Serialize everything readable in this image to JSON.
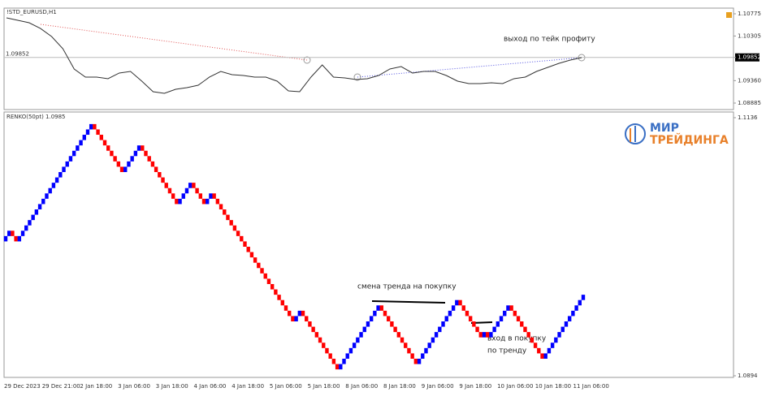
{
  "chart_data": [
    {
      "type": "line",
      "title": "!STD_EURUSD,H1",
      "color": "#333333",
      "values": [
        1.10689,
        1.10638,
        1.10586,
        1.10466,
        1.10294,
        1.10036,
        1.09607,
        1.09435,
        1.09435,
        1.09401,
        1.09521,
        1.09555,
        1.09349,
        1.09126,
        1.09091,
        1.09177,
        1.09212,
        1.09263,
        1.09435,
        1.09555,
        1.09487,
        1.09469,
        1.09435,
        1.09435,
        1.09349,
        1.09143,
        1.09126,
        1.09435,
        1.09693,
        1.09435,
        1.09418,
        1.09383,
        1.09401,
        1.09469,
        1.09607,
        1.09658,
        1.09521,
        1.09555,
        1.09555,
        1.09469,
        1.09349,
        1.09298,
        1.09298,
        1.09315,
        1.09298,
        1.09401,
        1.09435,
        1.09555,
        1.09641,
        1.09727,
        1.09796,
        1.09847
      ],
      "ylim": [
        1.08885,
        1.10775
      ],
      "yticks": [
        1.10775,
        1.10305,
        {
          "value": 1.09852,
          "label": "1.09852"
        },
        {
          "value": 1.0936,
          "label": "1.09360"
        },
        1.08885
      ],
      "annotations": [
        "выход по тейк профиту"
      ]
    },
    {
      "type": "renko",
      "title": "RENKO(50pt) 1.0985",
      "up_color": "#0000ff",
      "down_color": "#ff0000",
      "values": [
        1.1025,
        1.103,
        1.1025,
        1.102,
        1.1025,
        1.103,
        1.1035,
        1.104,
        1.1045,
        1.105,
        1.1055,
        1.106,
        1.1065,
        1.107,
        1.1075,
        1.108,
        1.1085,
        1.109,
        1.1095,
        1.11,
        1.1105,
        1.111,
        1.1115,
        1.112,
        1.1125,
        1.113,
        1.1125,
        1.112,
        1.1115,
        1.111,
        1.1105,
        1.11,
        1.1095,
        1.109,
        1.1085,
        1.109,
        1.1095,
        1.11,
        1.1105,
        1.111,
        1.1105,
        1.11,
        1.1095,
        1.109,
        1.1085,
        1.108,
        1.1075,
        1.107,
        1.1065,
        1.106,
        1.1055,
        1.106,
        1.1065,
        1.107,
        1.1075,
        1.107,
        1.1065,
        1.106,
        1.1055,
        1.106,
        1.1065,
        1.106,
        1.1055,
        1.105,
        1.1045,
        1.104,
        1.1035,
        1.103,
        1.1025,
        1.102,
        1.1015,
        1.101,
        1.1005,
        1.1,
        1.0995,
        1.099,
        1.0985,
        1.098,
        1.0975,
        1.097,
        1.0965,
        1.096,
        1.0955,
        1.095,
        1.0945,
        1.095,
        1.0955,
        1.095,
        1.0945,
        1.094,
        1.0935,
        1.093,
        1.0925,
        1.092,
        1.0915,
        1.091,
        1.0905,
        1.09,
        1.0905,
        1.091,
        1.0915,
        1.092,
        1.0925,
        1.093,
        1.0935,
        1.094,
        1.0945,
        1.095,
        1.0955,
        1.096,
        1.0955,
        1.095,
        1.0945,
        1.094,
        1.0935,
        1.093,
        1.0925,
        1.092,
        1.0915,
        1.091,
        1.0905,
        1.091,
        1.0915,
        1.092,
        1.0925,
        1.093,
        1.0935,
        1.094,
        1.0945,
        1.095,
        1.0955,
        1.096,
        1.0965,
        1.096,
        1.0955,
        1.095,
        1.0945,
        1.094,
        1.0935,
        1.093,
        1.0935,
        1.093,
        1.0935,
        1.094,
        1.0945,
        1.095,
        1.0955,
        1.096,
        1.0955,
        1.095,
        1.0945,
        1.094,
        1.0935,
        1.093,
        1.0925,
        1.092,
        1.0915,
        1.091,
        1.0915,
        1.092,
        1.0925,
        1.093,
        1.0935,
        1.094,
        1.0945,
        1.095,
        1.0955,
        1.096,
        1.0965,
        1.097
      ],
      "ylim": [
        1.0894,
        1.1136
      ],
      "yticks": [
        1.1136,
        1.0894
      ],
      "x_labels": [
        "29 Dec 2023",
        "29 Dec 21:00",
        "2 Jan 18:00",
        "3 Jan 06:00",
        "3 Jan 18:00",
        "4 Jan 06:00",
        "4 Jan 18:00",
        "5 Jan 06:00",
        "5 Jan 18:00",
        "8 Jan 06:00",
        "8 Jan 18:00",
        "9 Jan 06:00",
        "9 Jan 18:00",
        "10 Jan 06:00",
        "10 Jan 18:00",
        "11 Jan 06:00"
      ],
      "annotations": [
        "смена тренда на покупку",
        "вход в покупку",
        "по тренду"
      ]
    }
  ],
  "branding": {
    "line1": "МИР",
    "line2": "ТРЕЙДИНГА"
  }
}
